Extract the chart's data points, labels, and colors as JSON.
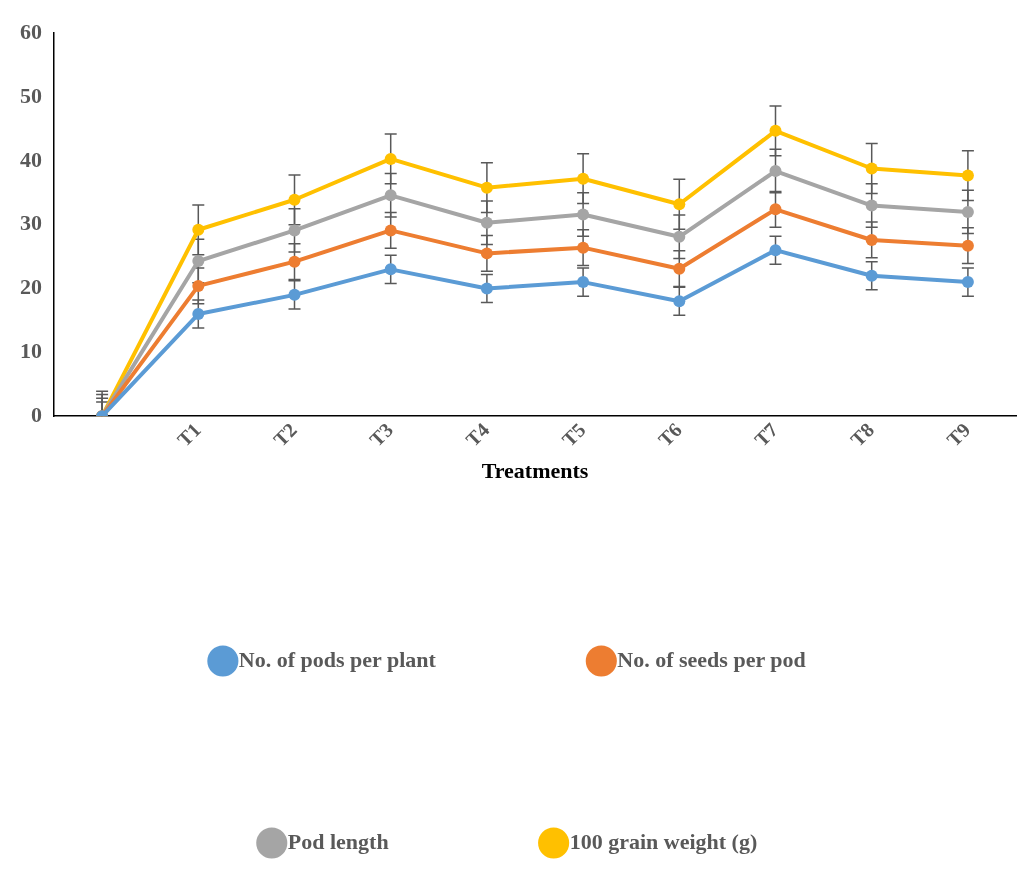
{
  "chart_data": {
    "type": "line",
    "xlabel": "Treatments",
    "categories": [
      null,
      "T1",
      "T2",
      "T3",
      "T4",
      "T5",
      "T6",
      "T7",
      "T8",
      "T9"
    ],
    "series": [
      {
        "name": "No. of pods per plant",
        "color": "#5b9bd5",
        "values": [
          0,
          16,
          19,
          23,
          20,
          21,
          18,
          26,
          22,
          21
        ],
        "errors": [
          [
            0,
            2.2
          ],
          2.2,
          2.2,
          2.2,
          2.2,
          2.2,
          2.2,
          2.2,
          2.2,
          2.2
        ]
      },
      {
        "name": "No. of seeds per pod",
        "color": "#ed7d31",
        "values": [
          0,
          20.4,
          24.2,
          29.1,
          25.5,
          26.4,
          23.1,
          32.4,
          27.6,
          26.7
        ],
        "errors": [
          [
            0,
            2.8
          ],
          2.8,
          2.8,
          2.8,
          2.8,
          2.8,
          2.8,
          2.8,
          2.8,
          2.8
        ]
      },
      {
        "name": "Pod length",
        "color": "#a5a5a5",
        "values": [
          0,
          24.3,
          29.1,
          34.6,
          30.3,
          31.6,
          28.1,
          38.4,
          33,
          32
        ],
        "errors": [
          [
            0,
            3.4
          ],
          3.4,
          3.4,
          3.4,
          3.4,
          3.4,
          3.4,
          3.4,
          3.4,
          3.4
        ]
      },
      {
        "name": "100 grain weight (g)",
        "color": "#ffc000",
        "values": [
          0,
          29.2,
          33.9,
          40.3,
          35.8,
          37.2,
          33.2,
          44.7,
          38.8,
          37.7
        ],
        "errors": [
          [
            0,
            3.9
          ],
          3.9,
          3.9,
          3.9,
          3.9,
          3.9,
          3.9,
          3.9,
          3.9,
          3.9
        ]
      }
    ],
    "ylim": [
      0,
      60
    ],
    "yticks": [
      0,
      10,
      20,
      30,
      40,
      50,
      60
    ],
    "grid": false,
    "legend": "bottom",
    "marker": "circle",
    "line_style": "solid"
  }
}
